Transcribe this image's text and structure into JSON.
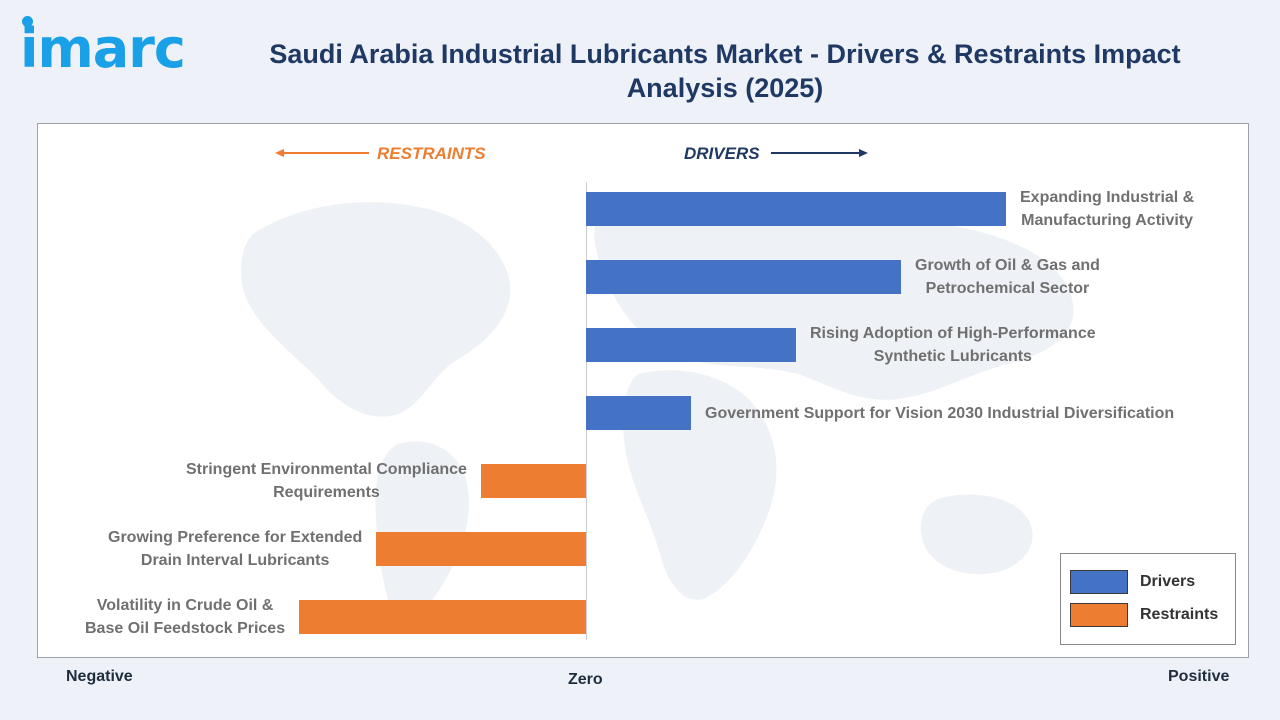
{
  "logo": {
    "text": "imarc",
    "color": "#1aa0e6"
  },
  "title": "Saudi Arabia Industrial Lubricants Market - Drivers & Restraints Impact Analysis (2025)",
  "colors": {
    "title": "#1f3864",
    "drivers": "#4472c4",
    "restraints": "#ed7d31",
    "drivers_label": "#1f3864",
    "restraints_label": "#ed7d31"
  },
  "chart_data": {
    "type": "bar",
    "orientation": "horizontal",
    "title": "Saudi Arabia Industrial Lubricants Market - Drivers & Restraints Impact Analysis (2025)",
    "direction_labels": {
      "restraints": "RESTRAINTS",
      "drivers": "DRIVERS"
    },
    "axis": {
      "negative": "Negative",
      "zero": "Zero",
      "positive": "Positive",
      "xlim": [
        -1.0,
        1.5
      ]
    },
    "grid": false,
    "legend_position": "bottom-right",
    "legend": [
      "Drivers",
      "Restraints"
    ],
    "series": [
      {
        "name": "Drivers",
        "items": [
          {
            "label": "Expanding Industrial & Manufacturing Activity",
            "value": 1.2
          },
          {
            "label": "Growth of Oil & Gas and Petrochemical Sector",
            "value": 0.9
          },
          {
            "label": "Rising Adoption of High-Performance Synthetic Lubricants",
            "value": 0.6
          },
          {
            "label": "Government Support for Vision 2030 Industrial Diversification",
            "value": 0.3
          }
        ]
      },
      {
        "name": "Restraints",
        "items": [
          {
            "label": "Stringent Environmental Compliance Requirements",
            "value": -0.3
          },
          {
            "label": "Growing Preference for Extended Drain Interval Lubricants",
            "value": -0.6
          },
          {
            "label": "Volatility in Crude Oil & Base Oil Feedstock Prices",
            "value": -0.82
          }
        ]
      }
    ]
  },
  "label_lines": [
    [
      "Expanding Industrial &",
      "Manufacturing Activity"
    ],
    [
      "Growth of Oil & Gas and",
      "Petrochemical Sector"
    ],
    [
      "Rising Adoption of High-Performance",
      "Synthetic Lubricants"
    ],
    [
      "Government Support for Vision 2030 Industrial Diversification"
    ],
    [
      "Stringent Environmental Compliance",
      "Requirements"
    ],
    [
      "Growing Preference for Extended",
      "Drain Interval Lubricants"
    ],
    [
      "Volatility in Crude Oil &",
      "Base Oil Feedstock Prices"
    ]
  ]
}
